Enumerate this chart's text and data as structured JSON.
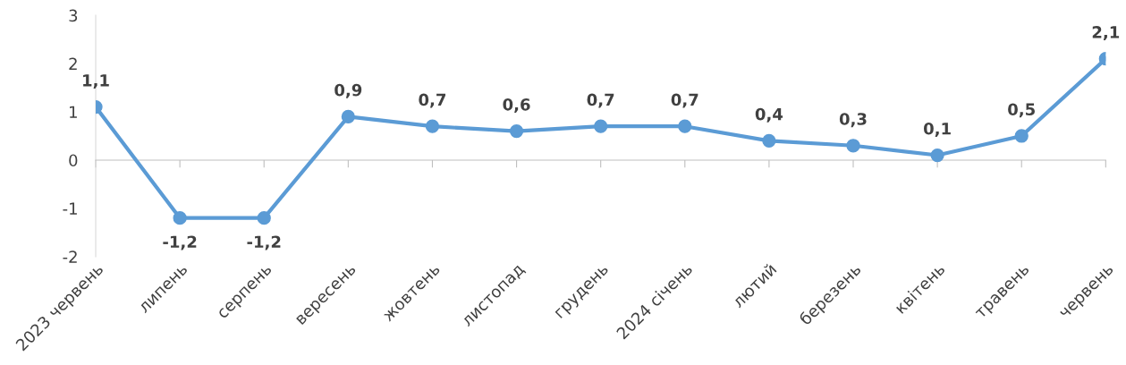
{
  "chart_data": {
    "type": "line",
    "categories": [
      "2023 червень",
      "липень",
      "серпень",
      "вересень",
      "жовтень",
      "листопад",
      "грудень",
      "2024 січень",
      "лютий",
      "березень",
      "квітень",
      "травень",
      "червень"
    ],
    "series": [
      {
        "color": "#5b9bd5",
        "values": [
          1.1,
          -1.2,
          -1.2,
          0.9,
          0.7,
          0.6,
          0.7,
          0.7,
          0.4,
          0.3,
          0.1,
          0.5,
          2.1
        ],
        "value_labels": [
          "1,1",
          "-1,2",
          "-1,2",
          "0,9",
          "0,7",
          "0,6",
          "0,7",
          "0,7",
          "0,4",
          "0,3",
          "0,1",
          "0,5",
          "2,1"
        ]
      }
    ],
    "ylim": [
      -2,
      3
    ],
    "yticks": [
      -2,
      -1,
      0,
      1,
      2,
      3
    ],
    "legend": false,
    "marker": "circle",
    "line_style": "solid"
  }
}
